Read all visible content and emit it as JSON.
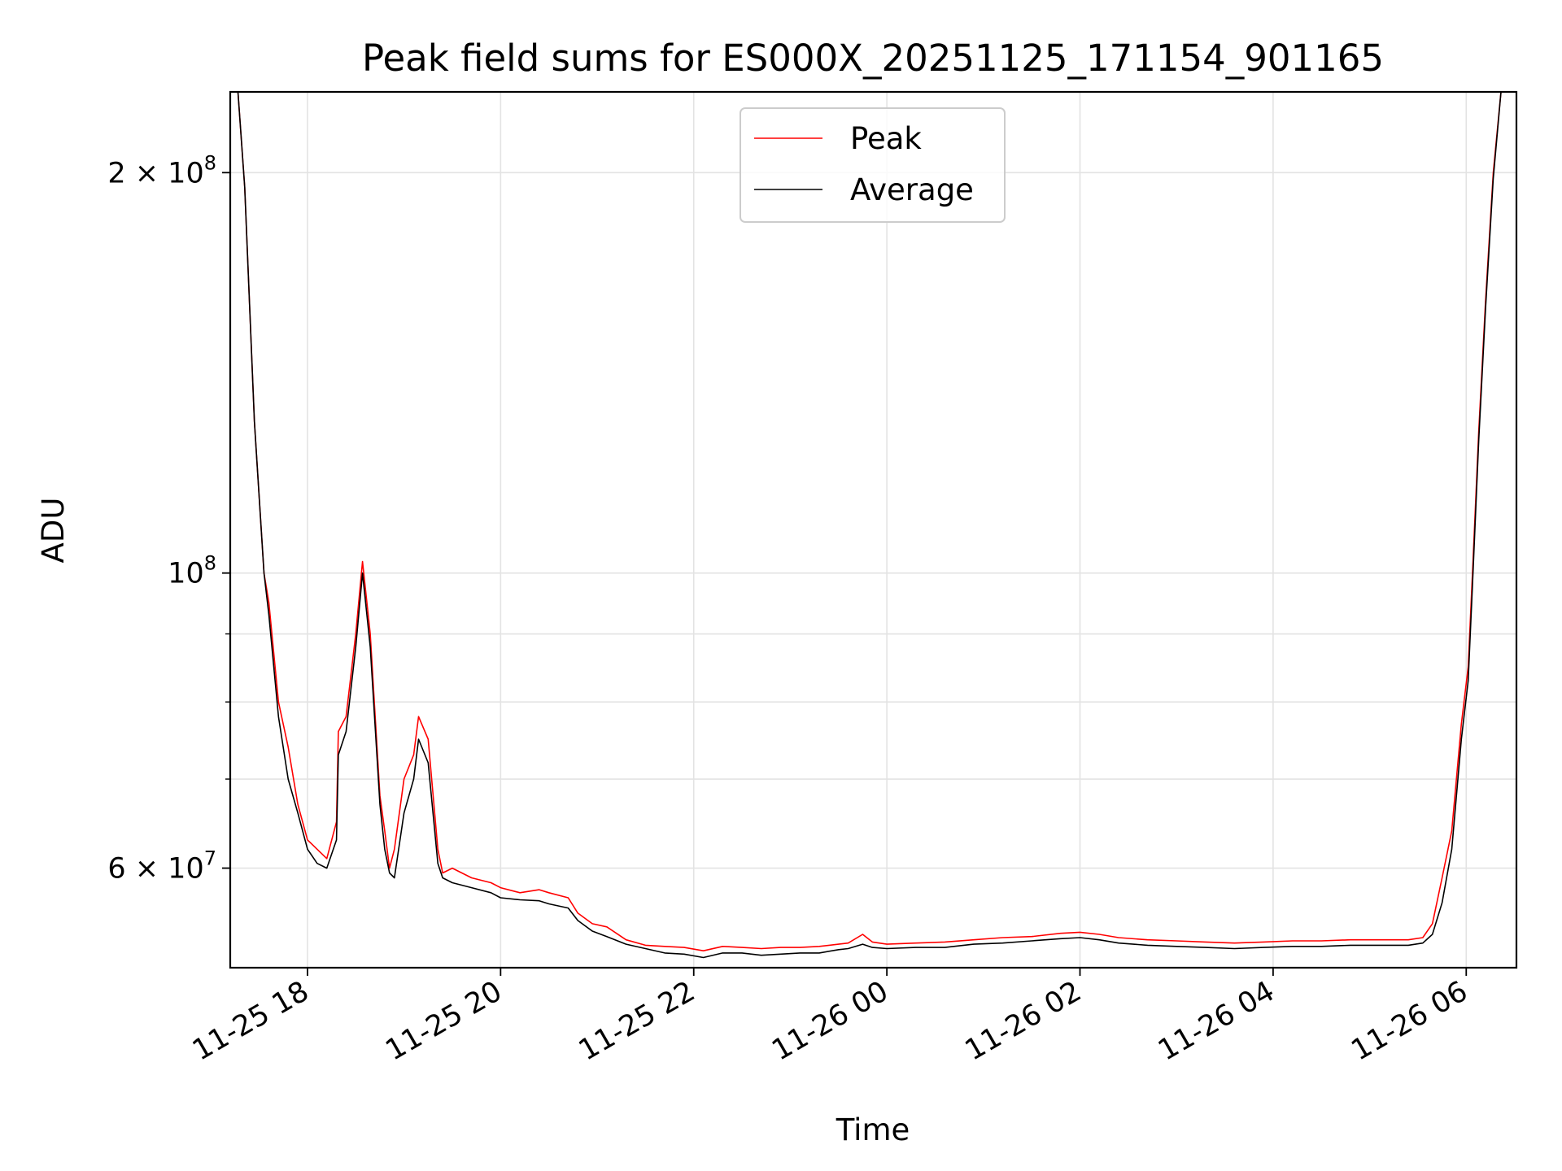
{
  "chart_data": {
    "type": "line",
    "title": "Peak field sums for ES000X_20251125_171154_901165",
    "xlabel": "Time",
    "ylabel": "ADU",
    "yscale": "log",
    "xlim_hours": [
      17.2,
      30.52
    ],
    "ylim": [
      50500000,
      230000000
    ],
    "grid": true,
    "legend_position": "top-center",
    "x_ticks": [
      {
        "label": "11-25 18",
        "hour": 18
      },
      {
        "label": "11-25 20",
        "hour": 20
      },
      {
        "label": "11-25 22",
        "hour": 22
      },
      {
        "label": "11-26 00",
        "hour": 24
      },
      {
        "label": "11-26 02",
        "hour": 26
      },
      {
        "label": "11-26 04",
        "hour": 28
      },
      {
        "label": "11-26 06",
        "hour": 30
      }
    ],
    "y_ticks": [
      {
        "value": 60000000,
        "mantissa": "6",
        "exponent": "7"
      },
      {
        "value": 100000000,
        "mantissa": "",
        "exponent": "8"
      },
      {
        "value": 200000000,
        "mantissa": "2",
        "exponent": "8"
      }
    ],
    "y_minor_ticks": [
      70000000,
      80000000,
      90000000
    ],
    "series": [
      {
        "name": "Peak",
        "color": "#ff0000",
        "points": [
          [
            17.28,
            230000000
          ],
          [
            17.35,
            195000000
          ],
          [
            17.45,
            130000000
          ],
          [
            17.55,
            100000000
          ],
          [
            17.6,
            95000000
          ],
          [
            17.7,
            80000000
          ],
          [
            17.8,
            74000000
          ],
          [
            17.9,
            67000000
          ],
          [
            18.0,
            63000000
          ],
          [
            18.1,
            62000000
          ],
          [
            18.2,
            61000000
          ],
          [
            18.3,
            65000000
          ],
          [
            18.32,
            76000000
          ],
          [
            18.4,
            78000000
          ],
          [
            18.5,
            90000000
          ],
          [
            18.57,
            102000000
          ],
          [
            18.65,
            90000000
          ],
          [
            18.75,
            68000000
          ],
          [
            18.8,
            64000000
          ],
          [
            18.85,
            60000000
          ],
          [
            18.9,
            62000000
          ],
          [
            19.0,
            70000000
          ],
          [
            19.1,
            73000000
          ],
          [
            19.15,
            78000000
          ],
          [
            19.25,
            75000000
          ],
          [
            19.35,
            62000000
          ],
          [
            19.4,
            59500000
          ],
          [
            19.5,
            60000000
          ],
          [
            19.7,
            59000000
          ],
          [
            19.9,
            58500000
          ],
          [
            20.0,
            58000000
          ],
          [
            20.2,
            57500000
          ],
          [
            20.4,
            57800000
          ],
          [
            20.5,
            57500000
          ],
          [
            20.7,
            57000000
          ],
          [
            20.8,
            55500000
          ],
          [
            20.95,
            54500000
          ],
          [
            21.1,
            54200000
          ],
          [
            21.3,
            53000000
          ],
          [
            21.5,
            52500000
          ],
          [
            21.7,
            52400000
          ],
          [
            21.9,
            52300000
          ],
          [
            22.1,
            52000000
          ],
          [
            22.3,
            52400000
          ],
          [
            22.5,
            52300000
          ],
          [
            22.7,
            52200000
          ],
          [
            22.9,
            52300000
          ],
          [
            23.1,
            52300000
          ],
          [
            23.3,
            52400000
          ],
          [
            23.5,
            52600000
          ],
          [
            23.6,
            52700000
          ],
          [
            23.75,
            53500000
          ],
          [
            23.85,
            52800000
          ],
          [
            24.0,
            52600000
          ],
          [
            24.3,
            52700000
          ],
          [
            24.6,
            52800000
          ],
          [
            24.9,
            53000000
          ],
          [
            25.2,
            53200000
          ],
          [
            25.5,
            53300000
          ],
          [
            25.8,
            53600000
          ],
          [
            26.0,
            53700000
          ],
          [
            26.2,
            53500000
          ],
          [
            26.4,
            53200000
          ],
          [
            26.7,
            53000000
          ],
          [
            27.0,
            52900000
          ],
          [
            27.3,
            52800000
          ],
          [
            27.6,
            52700000
          ],
          [
            27.9,
            52800000
          ],
          [
            28.2,
            52900000
          ],
          [
            28.5,
            52900000
          ],
          [
            28.8,
            53000000
          ],
          [
            29.1,
            53000000
          ],
          [
            29.4,
            53000000
          ],
          [
            29.55,
            53200000
          ],
          [
            29.65,
            54500000
          ],
          [
            29.75,
            59000000
          ],
          [
            29.85,
            64000000
          ],
          [
            29.95,
            77000000
          ],
          [
            30.02,
            85000000
          ],
          [
            30.07,
            102000000
          ],
          [
            30.13,
            128000000
          ],
          [
            30.2,
            160000000
          ],
          [
            30.28,
            200000000
          ],
          [
            30.36,
            230000000
          ]
        ]
      },
      {
        "name": "Average",
        "color": "#000000",
        "points": [
          [
            17.28,
            230000000
          ],
          [
            17.35,
            195000000
          ],
          [
            17.45,
            130000000
          ],
          [
            17.55,
            100000000
          ],
          [
            17.6,
            93000000
          ],
          [
            17.7,
            78000000
          ],
          [
            17.8,
            70000000
          ],
          [
            17.9,
            66000000
          ],
          [
            18.0,
            62000000
          ],
          [
            18.1,
            60500000
          ],
          [
            18.2,
            60000000
          ],
          [
            18.3,
            63000000
          ],
          [
            18.32,
            73000000
          ],
          [
            18.4,
            76000000
          ],
          [
            18.5,
            88000000
          ],
          [
            18.57,
            100000000
          ],
          [
            18.65,
            88000000
          ],
          [
            18.75,
            67000000
          ],
          [
            18.8,
            62000000
          ],
          [
            18.85,
            59500000
          ],
          [
            18.9,
            59000000
          ],
          [
            19.0,
            66000000
          ],
          [
            19.1,
            70000000
          ],
          [
            19.15,
            75000000
          ],
          [
            19.25,
            72000000
          ],
          [
            19.35,
            60500000
          ],
          [
            19.4,
            59000000
          ],
          [
            19.5,
            58500000
          ],
          [
            19.7,
            58000000
          ],
          [
            19.9,
            57500000
          ],
          [
            20.0,
            57000000
          ],
          [
            20.2,
            56800000
          ],
          [
            20.4,
            56700000
          ],
          [
            20.5,
            56400000
          ],
          [
            20.7,
            56000000
          ],
          [
            20.8,
            54800000
          ],
          [
            20.95,
            53800000
          ],
          [
            21.1,
            53300000
          ],
          [
            21.3,
            52600000
          ],
          [
            21.5,
            52200000
          ],
          [
            21.7,
            51800000
          ],
          [
            21.9,
            51700000
          ],
          [
            22.1,
            51400000
          ],
          [
            22.3,
            51800000
          ],
          [
            22.5,
            51800000
          ],
          [
            22.7,
            51600000
          ],
          [
            22.9,
            51700000
          ],
          [
            23.1,
            51800000
          ],
          [
            23.3,
            51800000
          ],
          [
            23.5,
            52100000
          ],
          [
            23.6,
            52200000
          ],
          [
            23.75,
            52600000
          ],
          [
            23.85,
            52300000
          ],
          [
            24.0,
            52200000
          ],
          [
            24.3,
            52300000
          ],
          [
            24.6,
            52300000
          ],
          [
            24.9,
            52600000
          ],
          [
            25.2,
            52700000
          ],
          [
            25.5,
            52900000
          ],
          [
            25.8,
            53100000
          ],
          [
            26.0,
            53200000
          ],
          [
            26.2,
            53000000
          ],
          [
            26.4,
            52700000
          ],
          [
            26.7,
            52500000
          ],
          [
            27.0,
            52400000
          ],
          [
            27.3,
            52300000
          ],
          [
            27.6,
            52200000
          ],
          [
            27.9,
            52300000
          ],
          [
            28.2,
            52400000
          ],
          [
            28.5,
            52400000
          ],
          [
            28.8,
            52500000
          ],
          [
            29.1,
            52500000
          ],
          [
            29.4,
            52500000
          ],
          [
            29.55,
            52700000
          ],
          [
            29.65,
            53500000
          ],
          [
            29.75,
            56500000
          ],
          [
            29.85,
            62000000
          ],
          [
            29.95,
            75000000
          ],
          [
            30.02,
            83000000
          ],
          [
            30.07,
            100000000
          ],
          [
            30.13,
            126000000
          ],
          [
            30.2,
            158000000
          ],
          [
            30.28,
            198000000
          ],
          [
            30.36,
            230000000
          ]
        ]
      }
    ]
  }
}
